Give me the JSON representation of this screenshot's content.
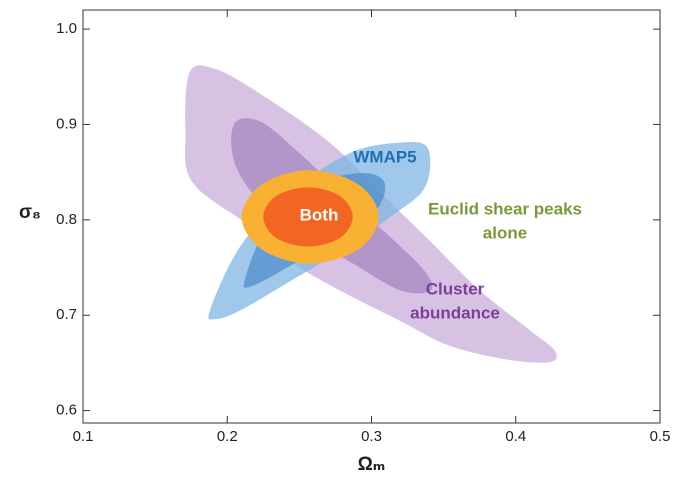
{
  "chart_data": {
    "type": "contour",
    "xlabel": "Ωₘ",
    "ylabel": "σ₈",
    "xlim": [
      0.1,
      0.5
    ],
    "ylim": [
      0.587,
      1.02
    ],
    "xticks": [
      0.1,
      0.2,
      0.3,
      0.4,
      0.5
    ],
    "yticks": [
      0.6,
      0.7,
      0.8,
      0.9,
      {
        "value": 1.0,
        "label": "1.0"
      }
    ],
    "series": [
      {
        "color": "#c9aedb",
        "x": [
          0.174,
          0.192,
          0.223,
          0.271,
          0.306,
          0.341,
          0.375,
          0.41,
          0.427,
          0.424,
          0.396,
          0.354,
          0.32,
          0.278,
          0.244,
          0.216,
          0.176,
          0.171
        ],
        "y": [
          0.955,
          0.958,
          0.932,
          0.881,
          0.829,
          0.777,
          0.726,
          0.684,
          0.663,
          0.651,
          0.653,
          0.668,
          0.694,
          0.726,
          0.756,
          0.793,
          0.839,
          0.891
        ]
      },
      {
        "color": "#a585c0",
        "x": [
          0.205,
          0.223,
          0.25,
          0.282,
          0.313,
          0.337,
          0.341,
          0.32,
          0.285,
          0.25,
          0.223,
          0.205
        ],
        "y": [
          0.901,
          0.903,
          0.87,
          0.824,
          0.782,
          0.746,
          0.726,
          0.726,
          0.756,
          0.787,
          0.818,
          0.86
        ]
      },
      {
        "color": "#7fb6e3",
        "x": [
          0.188,
          0.209,
          0.244,
          0.285,
          0.32,
          0.339,
          0.337,
          0.313,
          0.278,
          0.244,
          0.209,
          0.192
        ],
        "y": [
          0.705,
          0.772,
          0.829,
          0.87,
          0.881,
          0.875,
          0.834,
          0.803,
          0.767,
          0.736,
          0.705,
          0.696
        ]
      },
      {
        "color": "#4f8fcc",
        "x": [
          0.212,
          0.226,
          0.257,
          0.292,
          0.309,
          0.302,
          0.271,
          0.237,
          0.216
        ],
        "y": [
          0.736,
          0.787,
          0.834,
          0.849,
          0.839,
          0.808,
          0.777,
          0.746,
          0.73
        ]
      },
      {
        "color": "#f8b133",
        "x": [
          0.305,
          0.291,
          0.257,
          0.224,
          0.21,
          0.224,
          0.257,
          0.291
        ],
        "y": [
          0.803,
          0.837,
          0.852,
          0.837,
          0.803,
          0.769,
          0.754,
          0.769
        ]
      },
      {
        "color": "#f26522",
        "x": [
          0.287,
          0.278,
          0.256,
          0.234,
          0.225,
          0.234,
          0.256,
          0.278
        ],
        "y": [
          0.803,
          0.825,
          0.834,
          0.825,
          0.803,
          0.781,
          0.772,
          0.781
        ]
      }
    ],
    "annotations": [
      {
        "lines": [
          "WMAP5"
        ],
        "color": "#1f6fb5"
      },
      {
        "lines": [
          "Euclid shear peaks",
          "alone"
        ],
        "color": "#7a9a3a"
      },
      {
        "lines": [
          "Cluster",
          "abundance"
        ],
        "color": "#7b3f98"
      },
      {
        "lines": [
          "Both"
        ],
        "color": "#ffffff"
      }
    ]
  }
}
